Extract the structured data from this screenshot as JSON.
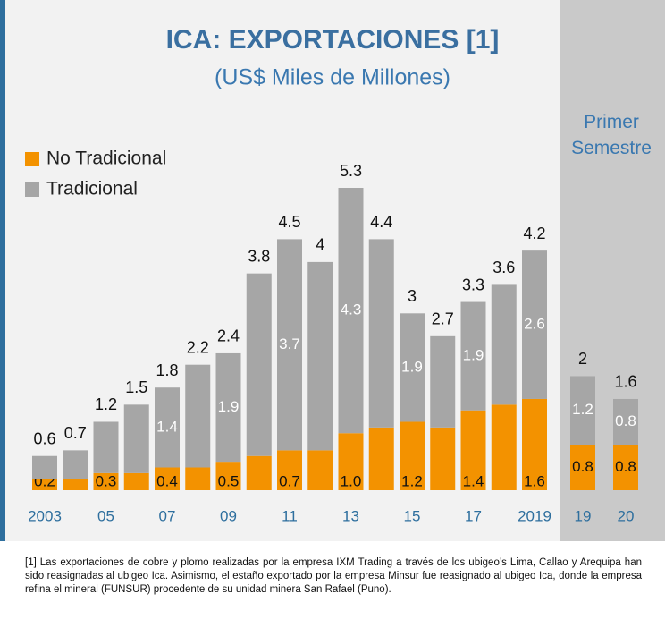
{
  "chart_data": [
    {
      "type": "stacked-bar",
      "title": "ICA: EXPORTACIONES [1]",
      "subtitle": "(US$ Miles de Millones)",
      "categories": [
        "2003",
        null,
        "05",
        null,
        "07",
        null,
        "09",
        null,
        "11",
        null,
        "13",
        null,
        "15",
        null,
        "17",
        null,
        "2019"
      ],
      "series": [
        {
          "name": "No Tradicional",
          "color": "#f39200",
          "values": [
            0.2,
            0.2,
            0.3,
            0.3,
            0.4,
            0.4,
            0.5,
            0.6,
            0.7,
            0.7,
            1.0,
            1.1,
            1.2,
            1.1,
            1.4,
            1.5,
            1.6
          ],
          "value_labels": [
            "0.2",
            null,
            "0.3",
            null,
            "0.4",
            null,
            "0.5",
            null,
            "0.7",
            null,
            "1.0",
            null,
            "1.2",
            null,
            "1.4",
            null,
            "1.6"
          ]
        },
        {
          "name": "Tradicional",
          "color": "#a6a6a6",
          "values": [
            0.4,
            0.5,
            0.9,
            1.2,
            1.4,
            1.8,
            1.9,
            3.2,
            3.7,
            3.3,
            4.3,
            3.3,
            1.9,
            1.6,
            1.9,
            2.1,
            2.6
          ],
          "value_labels": [
            null,
            null,
            null,
            null,
            "1.4",
            null,
            "1.9",
            null,
            "3.7",
            null,
            "4.3",
            null,
            "1.9",
            null,
            "1.9",
            null,
            "2.6"
          ]
        }
      ],
      "totals": [
        0.6,
        0.7,
        1.2,
        1.5,
        1.8,
        2.2,
        2.4,
        3.8,
        4.5,
        4.0,
        5.3,
        4.4,
        3.0,
        2.7,
        3.3,
        3.6,
        4.2
      ],
      "legend": "top-left"
    },
    {
      "type": "stacked-bar",
      "title": "Primer Semestre",
      "categories": [
        "19",
        "20"
      ],
      "series": [
        {
          "name": "No Tradicional",
          "color": "#f39200",
          "values": [
            0.8,
            0.8
          ]
        },
        {
          "name": "Tradicional",
          "color": "#a6a6a6",
          "values": [
            1.2,
            0.8
          ]
        }
      ],
      "totals": [
        2.0,
        1.6
      ]
    }
  ],
  "footnote": "[1] Las exportaciones de cobre y plomo realizadas por la empresa IXM Trading a través de los ubigeo’s Lima, Callao y Arequipa han sido reasignadas al ubigeo Ica. Asimismo, el estaño exportado por la empresa Minsur fue reasignado al ubigeo Ica, donde la empresa refina el mineral (FUNSUR) procedente de su unidad minera San Rafael (Puno)."
}
